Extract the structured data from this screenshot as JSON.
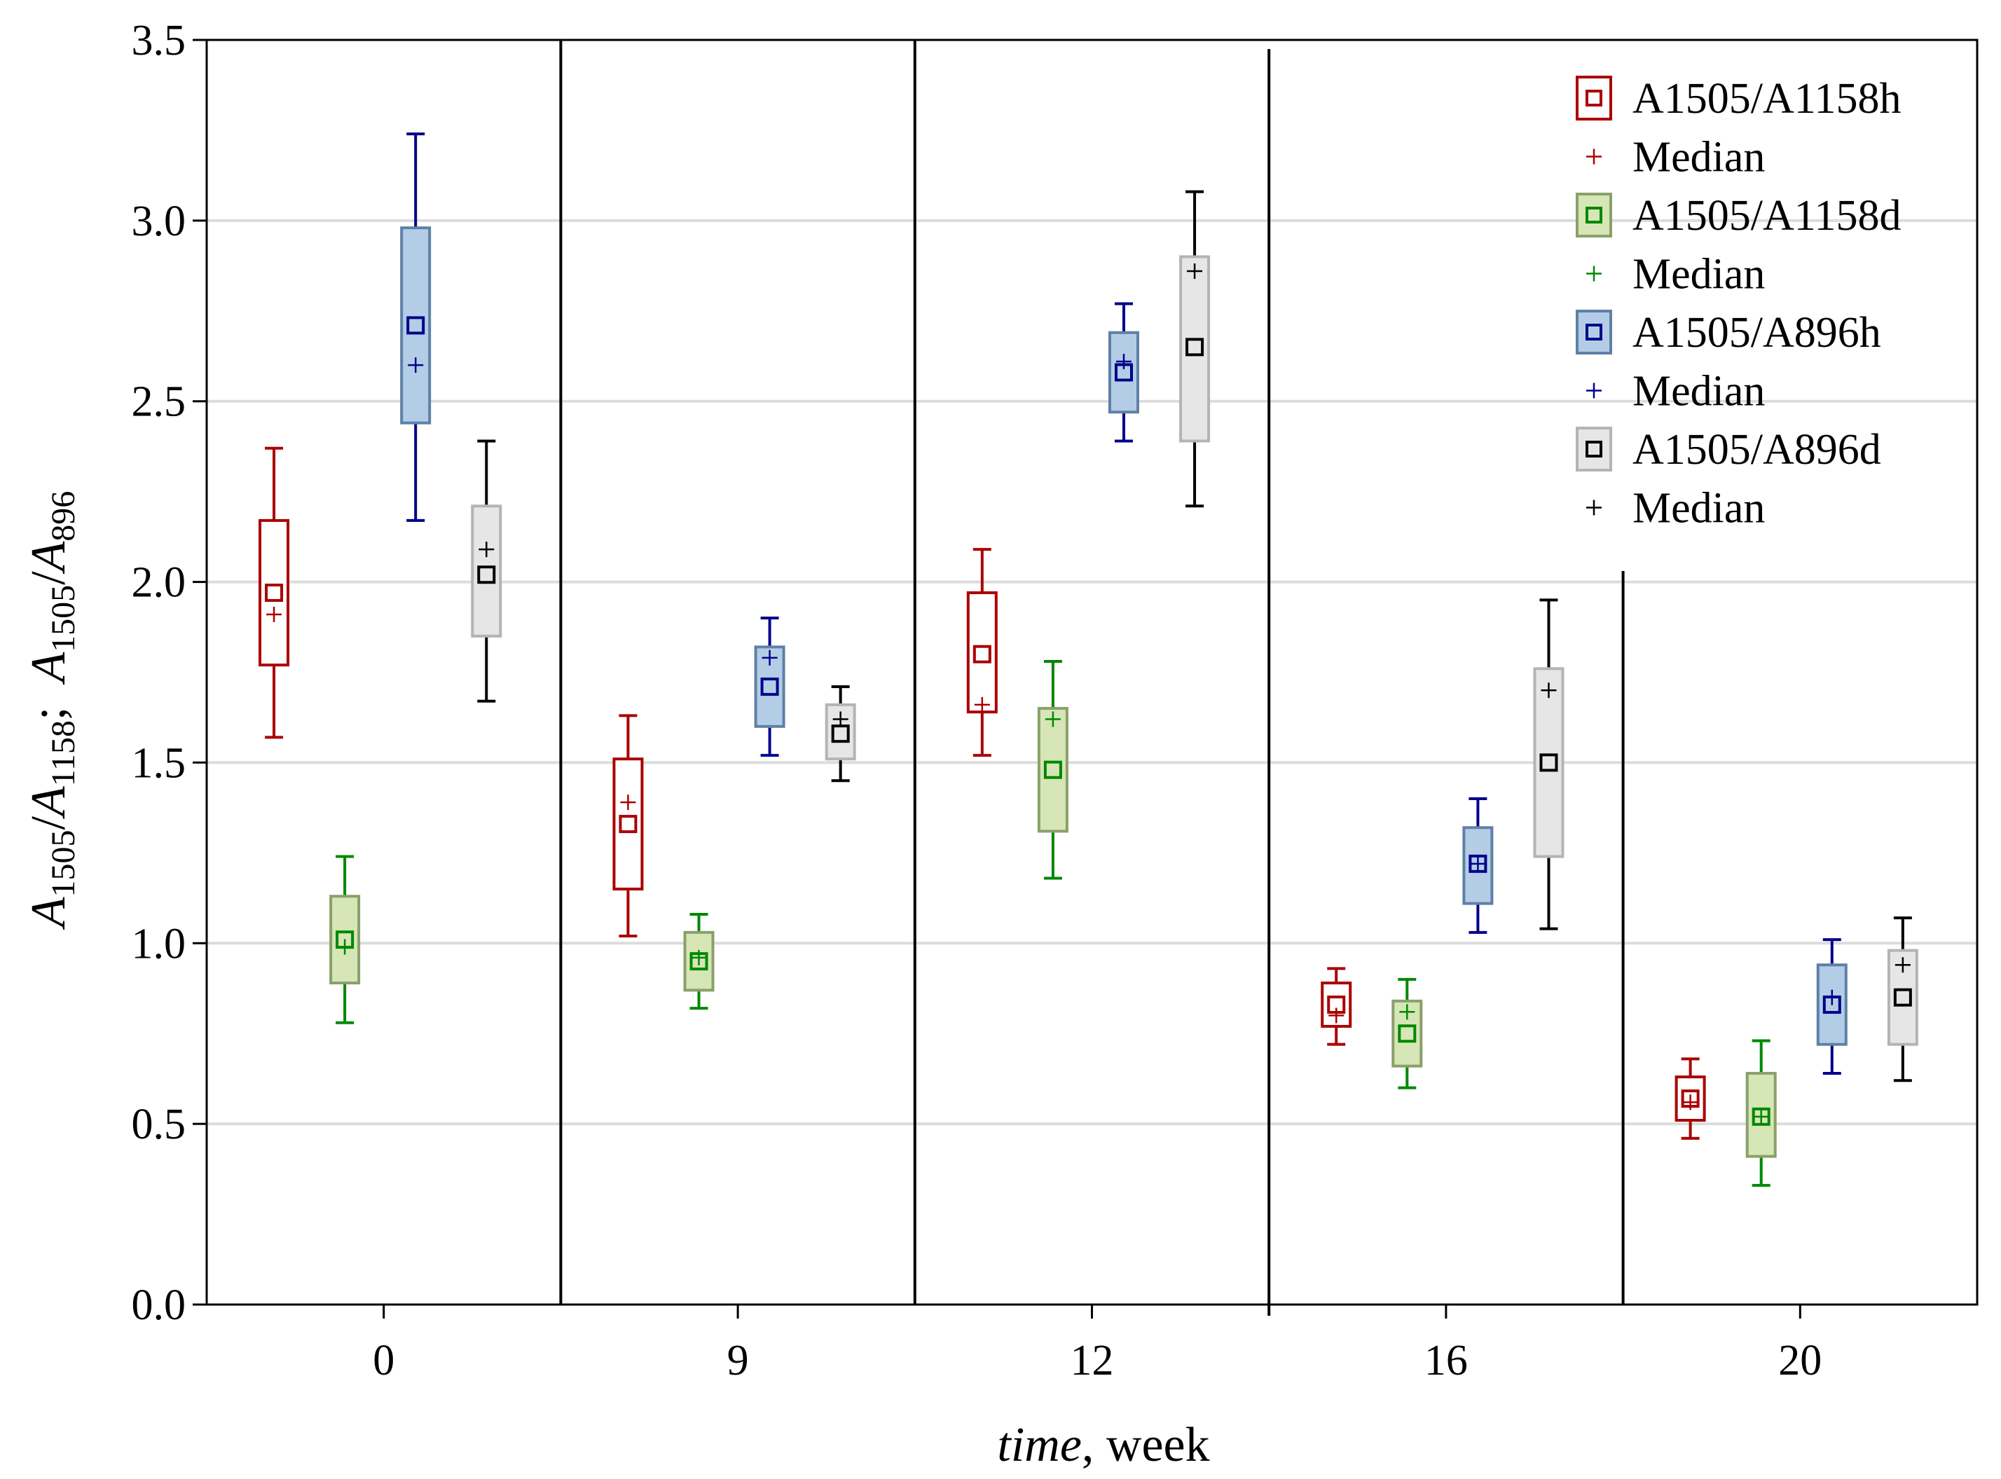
{
  "chart_data": {
    "type": "box",
    "title": "",
    "xlabel_italic": "time",
    "xlabel_rest": ", week",
    "ylabel": "A1505/A1158;  A1505/A896",
    "ylabel_parts": {
      "a1": "A",
      "s1": "1505",
      "sl1": "/",
      "a2": "A",
      "s2": "1158",
      "sep": ";  ",
      "a3": "A",
      "s3": "1505",
      "sl2": "/",
      "a4": "A",
      "s4": "896"
    },
    "ylim": [
      0.0,
      3.5
    ],
    "yticks": [
      "0.0",
      "0.5",
      "1.0",
      "1.5",
      "2.0",
      "2.5",
      "3.0",
      "3.5"
    ],
    "grid": true,
    "categories": [
      "0",
      "9",
      "12",
      "16",
      "20"
    ],
    "legend_position": "top-right",
    "legend": [
      {
        "label": "A1505/A1158h",
        "kind": "box",
        "series": 0
      },
      {
        "label": "Median",
        "kind": "median",
        "series": 0
      },
      {
        "label": "A1505/A1158d",
        "kind": "box",
        "series": 1
      },
      {
        "label": "Median",
        "kind": "median",
        "series": 1
      },
      {
        "label": "A1505/A896h",
        "kind": "box",
        "series": 2
      },
      {
        "label": "Median",
        "kind": "median",
        "series": 2
      },
      {
        "label": "A1505/A896d",
        "kind": "box",
        "series": 3
      },
      {
        "label": "Median",
        "kind": "median",
        "series": 3
      }
    ],
    "series": [
      {
        "name": "A1505/A1158h",
        "color": "#aa0000",
        "fill": "#ffffff",
        "border": "#aa0000",
        "boxes": [
          {
            "mean": 1.97,
            "median": 1.91,
            "q1": 1.77,
            "q3": 2.17,
            "min": 1.57,
            "max": 2.37
          },
          {
            "mean": 1.33,
            "median": 1.39,
            "q1": 1.15,
            "q3": 1.51,
            "min": 1.02,
            "max": 1.63
          },
          {
            "mean": 1.8,
            "median": 1.66,
            "q1": 1.64,
            "q3": 1.97,
            "min": 1.52,
            "max": 2.09
          },
          {
            "mean": 0.83,
            "median": 0.8,
            "q1": 0.77,
            "q3": 0.89,
            "min": 0.72,
            "max": 0.93
          },
          {
            "mean": 0.57,
            "median": 0.56,
            "q1": 0.51,
            "q3": 0.63,
            "min": 0.46,
            "max": 0.68
          }
        ]
      },
      {
        "name": "A1505/A1158d",
        "color": "#008800",
        "fill": "#d6e6b6",
        "border": "#8aa06a",
        "boxes": [
          {
            "mean": 1.01,
            "median": 0.99,
            "q1": 0.89,
            "q3": 1.13,
            "min": 0.78,
            "max": 1.24
          },
          {
            "mean": 0.95,
            "median": 0.96,
            "q1": 0.87,
            "q3": 1.03,
            "min": 0.82,
            "max": 1.08
          },
          {
            "mean": 1.48,
            "median": 1.62,
            "q1": 1.31,
            "q3": 1.65,
            "min": 1.18,
            "max": 1.78
          },
          {
            "mean": 0.75,
            "median": 0.81,
            "q1": 0.66,
            "q3": 0.84,
            "min": 0.6,
            "max": 0.9
          },
          {
            "mean": 0.52,
            "median": 0.52,
            "q1": 0.41,
            "q3": 0.64,
            "min": 0.33,
            "max": 0.73
          }
        ]
      },
      {
        "name": "A1505/A896h",
        "color": "#00008b",
        "fill": "#b4cde6",
        "border": "#5f80a6",
        "boxes": [
          {
            "mean": 2.71,
            "median": 2.6,
            "q1": 2.44,
            "q3": 2.98,
            "min": 2.17,
            "max": 3.24
          },
          {
            "mean": 1.71,
            "median": 1.79,
            "q1": 1.6,
            "q3": 1.82,
            "min": 1.52,
            "max": 1.9
          },
          {
            "mean": 2.58,
            "median": 2.61,
            "q1": 2.47,
            "q3": 2.69,
            "min": 2.39,
            "max": 2.77
          },
          {
            "mean": 1.22,
            "median": 1.22,
            "q1": 1.11,
            "q3": 1.32,
            "min": 1.03,
            "max": 1.4
          },
          {
            "mean": 0.83,
            "median": 0.85,
            "q1": 0.72,
            "q3": 0.94,
            "min": 0.64,
            "max": 1.01
          }
        ]
      },
      {
        "name": "A1505/A896d",
        "color": "#000000",
        "fill": "#e6e6e6",
        "border": "#b4b4b4",
        "boxes": [
          {
            "mean": 2.02,
            "median": 2.09,
            "q1": 1.85,
            "q3": 2.21,
            "min": 1.67,
            "max": 2.39
          },
          {
            "mean": 1.58,
            "median": 1.62,
            "q1": 1.51,
            "q3": 1.66,
            "min": 1.45,
            "max": 1.71
          },
          {
            "mean": 2.65,
            "median": 2.86,
            "q1": 2.39,
            "q3": 2.9,
            "min": 2.21,
            "max": 3.08
          },
          {
            "mean": 1.5,
            "median": 1.7,
            "q1": 1.24,
            "q3": 1.76,
            "min": 1.04,
            "max": 1.95
          },
          {
            "mean": 0.85,
            "median": 0.94,
            "q1": 0.72,
            "q3": 0.98,
            "min": 0.62,
            "max": 1.07
          }
        ]
      }
    ]
  }
}
